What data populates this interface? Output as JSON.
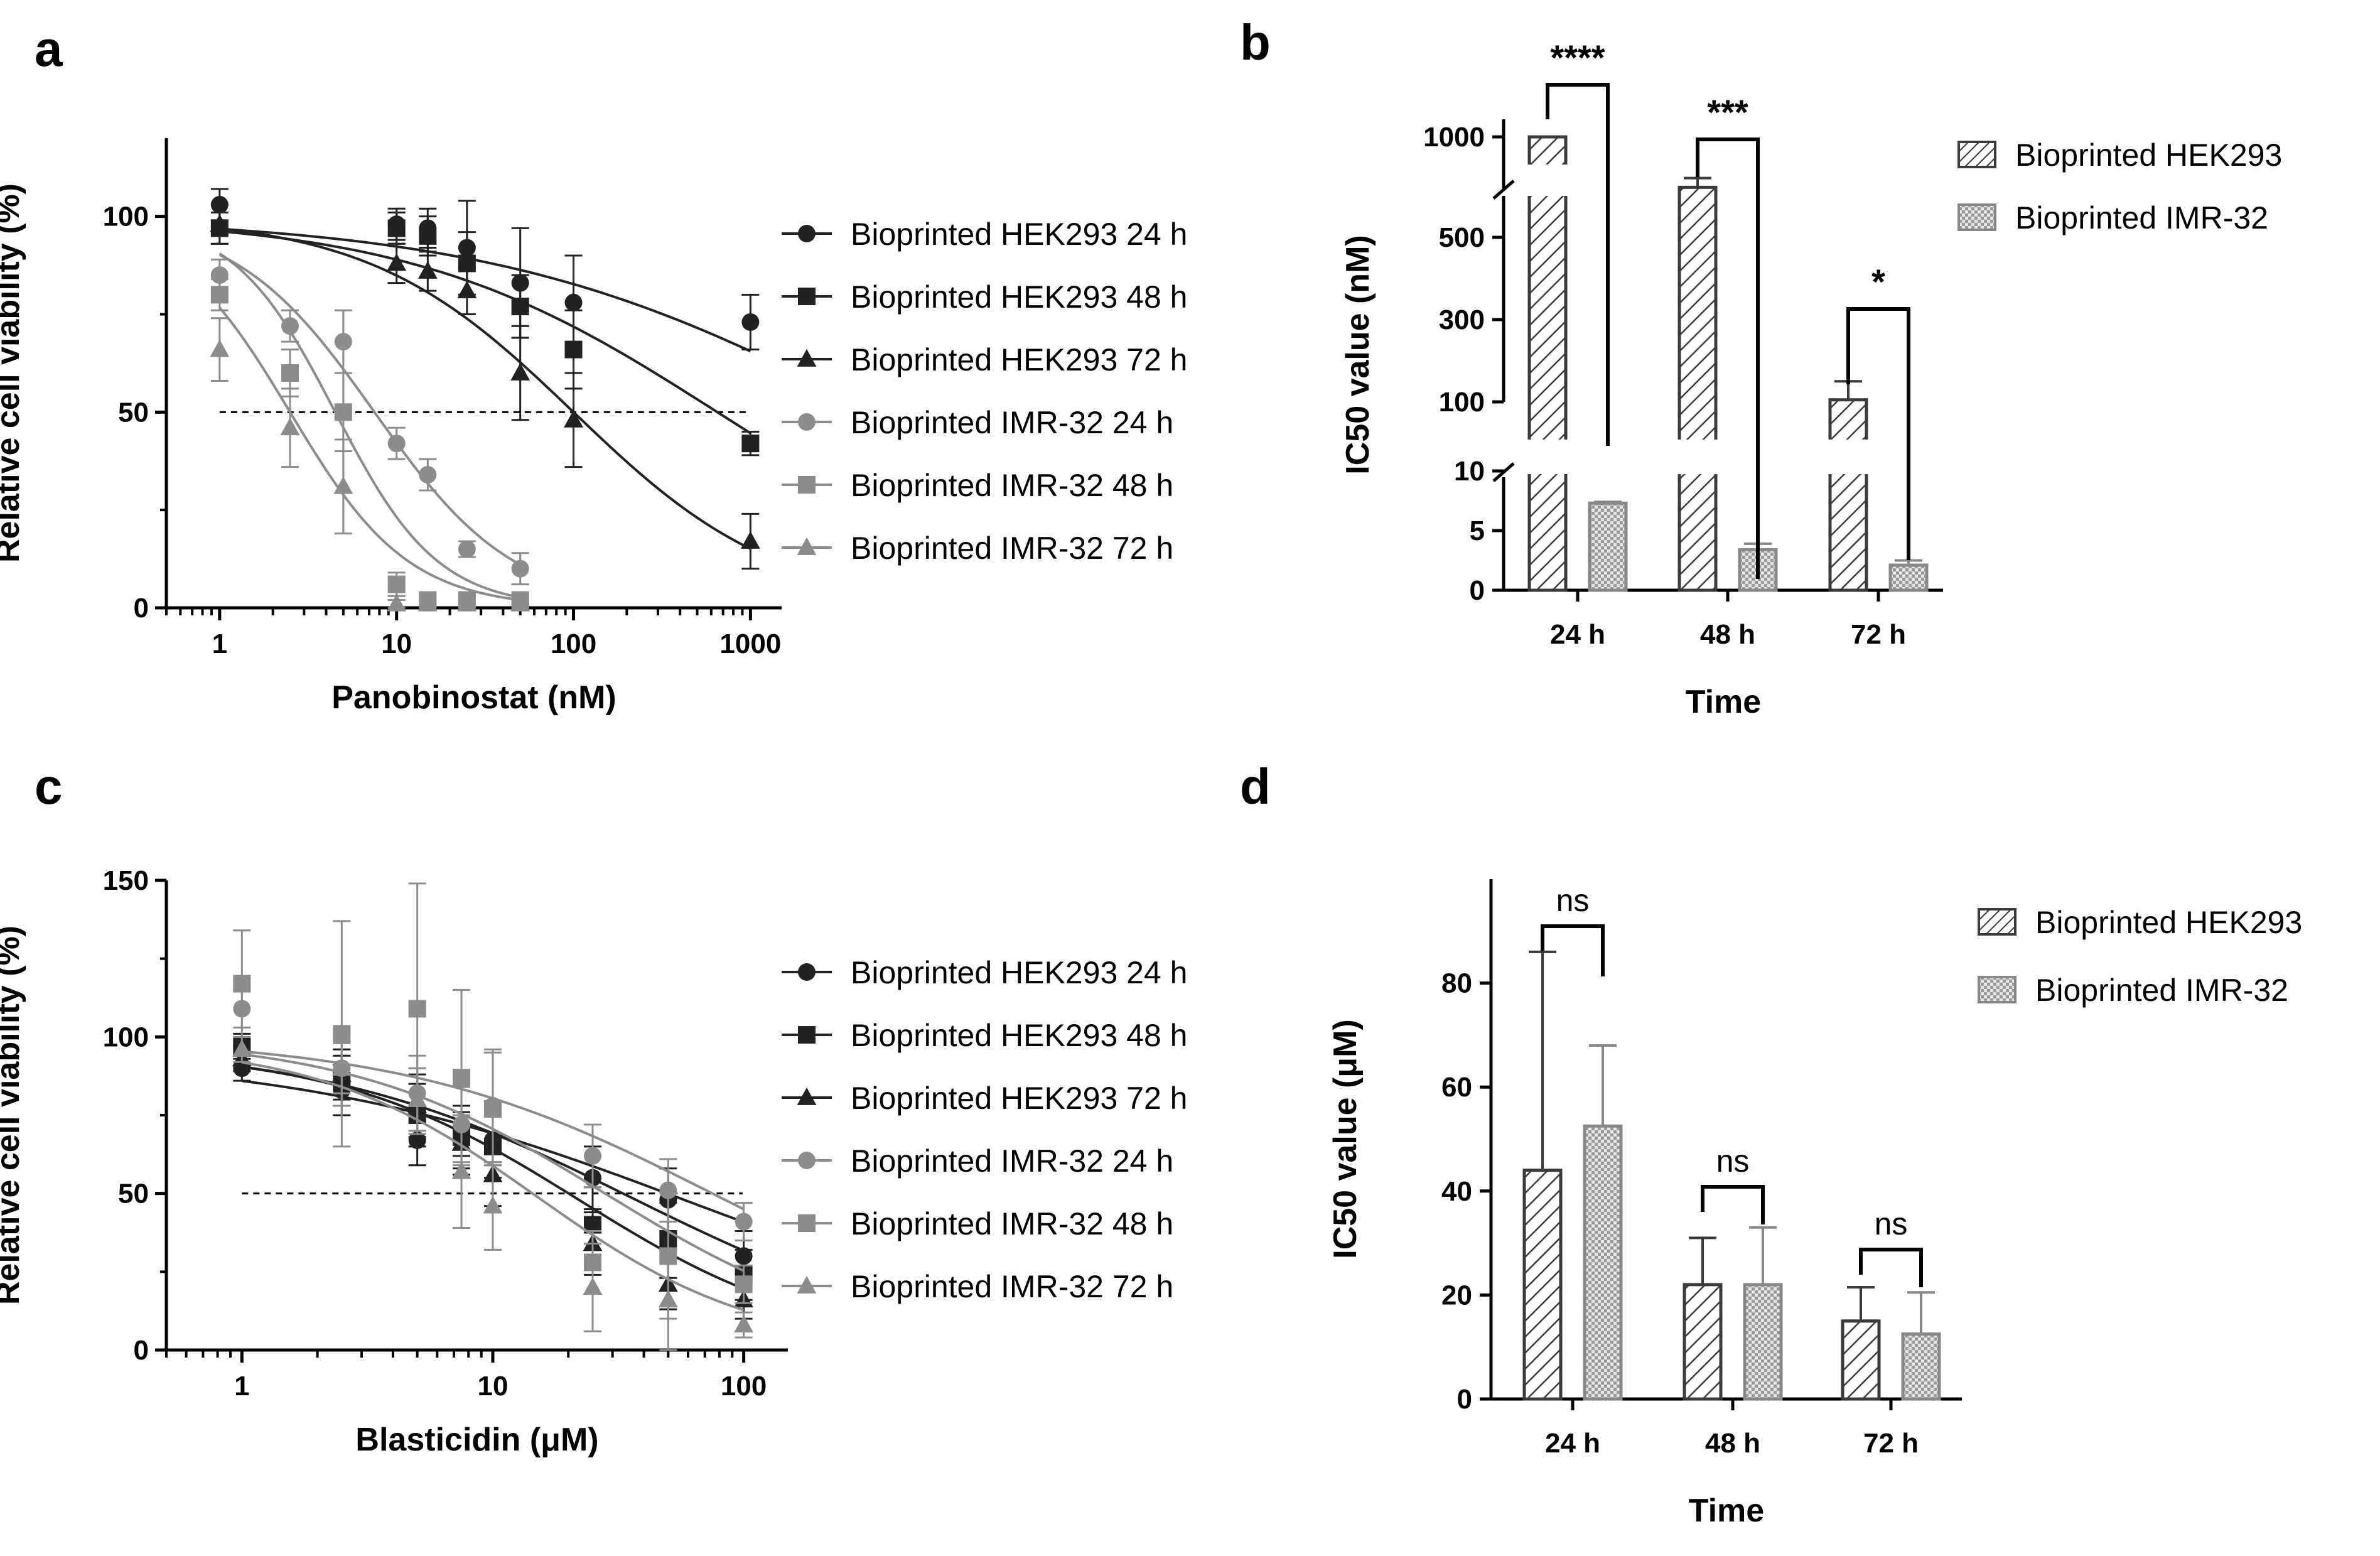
{
  "panels": {
    "a": "a",
    "b": "b",
    "c": "c",
    "d": "d"
  },
  "colors": {
    "hek": "#222222",
    "imr": "#8c8c8c",
    "hek_bar": "#3a3a3a",
    "imr_bar": "#888888"
  },
  "chart_data": [
    {
      "id": "a",
      "type": "scatter",
      "xscale": "log",
      "xlabel": "Panobinostat (nM)",
      "ylabel": "Relative cell viability (%)",
      "xlim": [
        0.5,
        1500
      ],
      "ylim": [
        0,
        120
      ],
      "xticks": [
        "1",
        "10",
        "100",
        "1000"
      ],
      "yticks": [
        "0",
        "50",
        "100"
      ],
      "reference_line": 50,
      "legend_position": "right",
      "series": [
        {
          "name": "Bioprinted HEK293 24 h",
          "color": "#222222",
          "marker": "circle",
          "x": [
            1,
            10,
            15,
            25,
            50,
            100,
            1000
          ],
          "y": [
            103,
            98,
            97,
            92,
            83,
            78,
            73
          ],
          "err": [
            4,
            4,
            5,
            12,
            14,
            12,
            7
          ],
          "fit": {
            "top": 100,
            "bottom": 0,
            "ic50": 5000,
            "hill": 0.4
          }
        },
        {
          "name": "Bioprinted HEK293 48 h",
          "color": "#222222",
          "marker": "square",
          "x": [
            1,
            10,
            15,
            25,
            50,
            100,
            1000
          ],
          "y": [
            97,
            97,
            95,
            88,
            77,
            66,
            42
          ],
          "err": [
            4,
            4,
            5,
            8,
            8,
            10,
            3
          ],
          "fit": {
            "top": 100,
            "bottom": 0,
            "ic50": 650,
            "hill": 0.5
          }
        },
        {
          "name": "Bioprinted HEK293 72 h",
          "color": "#222222",
          "marker": "triangle",
          "x": [
            1,
            10,
            15,
            25,
            50,
            100,
            1000
          ],
          "y": [
            98,
            88,
            86,
            81,
            60,
            48,
            17
          ],
          "err": [
            5,
            5,
            5,
            6,
            12,
            12,
            7
          ],
          "fit": {
            "top": 100,
            "bottom": 0,
            "ic50": 100,
            "hill": 0.75
          }
        },
        {
          "name": "Bioprinted IMR-32 24 h",
          "color": "#8c8c8c",
          "marker": "circle",
          "x": [
            1,
            2.5,
            5,
            10,
            15,
            25,
            50
          ],
          "y": [
            85,
            72,
            68,
            42,
            34,
            15,
            10
          ],
          "err": [
            4,
            4,
            8,
            4,
            4,
            2,
            4
          ],
          "fit": {
            "top": 100,
            "bottom": 0,
            "ic50": 7.5,
            "hill": 1.1
          }
        },
        {
          "name": "Bioprinted IMR-32 48 h",
          "color": "#8c8c8c",
          "marker": "square",
          "x": [
            1,
            2.5,
            5,
            10,
            15,
            25,
            50
          ],
          "y": [
            80,
            60,
            50,
            6,
            2,
            2,
            2
          ],
          "err": [
            4,
            6,
            10,
            3,
            1,
            1,
            1
          ],
          "fit": {
            "top": 100,
            "bottom": 0,
            "ic50": 4.5,
            "hill": 1.5
          }
        },
        {
          "name": "Bioprinted IMR-32 72 h",
          "color": "#8c8c8c",
          "marker": "triangle",
          "x": [
            1,
            2.5,
            5,
            10,
            15,
            25,
            50
          ],
          "y": [
            66,
            46,
            31,
            1,
            1,
            1,
            1
          ],
          "err": [
            8,
            10,
            12,
            1,
            1,
            1,
            1
          ],
          "fit": {
            "top": 100,
            "bottom": 0,
            "ic50": 2.5,
            "hill": 1.3
          }
        }
      ]
    },
    {
      "id": "b",
      "type": "bar",
      "xlabel": "Time",
      "ylabel": "IC50 value (nM)",
      "categories": [
        "24 h",
        "48 h",
        "72 h"
      ],
      "yticks": [
        "0",
        "5",
        "10",
        "100",
        "300",
        "500",
        "1000"
      ],
      "broken_axis": true,
      "legend_position": "top-right",
      "series": [
        {
          "name": "Bioprinted HEK293",
          "color": "#3a3a3a",
          "pattern": "hatch",
          "values": [
            1000,
            510,
            105
          ],
          "err": [
            0,
            90,
            45
          ]
        },
        {
          "name": "Bioprinted IMR-32",
          "color": "#888888",
          "pattern": "checker",
          "values": [
            7.3,
            3.4,
            2.1
          ],
          "err": [
            0.1,
            0.5,
            0.4
          ]
        }
      ],
      "significance": [
        "****",
        "***",
        "*"
      ]
    },
    {
      "id": "c",
      "type": "scatter",
      "xscale": "log",
      "xlabel": "Blasticidin (μM)",
      "ylabel": "Relative cell viability (%)",
      "xlim": [
        0.5,
        150
      ],
      "ylim": [
        0,
        150
      ],
      "xticks": [
        "1",
        "10",
        "100"
      ],
      "yticks": [
        "0",
        "50",
        "100",
        "150"
      ],
      "reference_line": 50,
      "legend_position": "right",
      "series": [
        {
          "name": "Bioprinted HEK293 24 h",
          "color": "#222222",
          "marker": "circle",
          "x": [
            1,
            2.5,
            5,
            7.5,
            10,
            25,
            50,
            100
          ],
          "y": [
            90,
            83,
            67,
            70,
            67,
            55,
            48,
            30
          ],
          "err": [
            4,
            8,
            8,
            8,
            8,
            10,
            10,
            8
          ],
          "fit": {
            "top": 95,
            "bottom": 0,
            "ic50": 60,
            "hill": 0.55
          }
        },
        {
          "name": "Bioprinted HEK293 48 h",
          "color": "#222222",
          "marker": "square",
          "x": [
            1,
            2.5,
            5,
            7.5,
            10,
            25,
            50,
            100
          ],
          "y": [
            97,
            86,
            75,
            68,
            65,
            40,
            35,
            24
          ],
          "err": [
            4,
            8,
            10,
            10,
            10,
            12,
            12,
            8
          ],
          "fit": {
            "top": 98,
            "bottom": 0,
            "ic50": 35,
            "hill": 0.7
          }
        },
        {
          "name": "Bioprinted HEK293 72 h",
          "color": "#222222",
          "marker": "triangle",
          "x": [
            1,
            2.5,
            5,
            7.5,
            10,
            25,
            50,
            100
          ],
          "y": [
            93,
            88,
            78,
            66,
            56,
            34,
            21,
            16
          ],
          "err": [
            4,
            8,
            10,
            10,
            10,
            10,
            8,
            6
          ],
          "fit": {
            "top": 96,
            "bottom": 0,
            "ic50": 22,
            "hill": 0.9
          }
        },
        {
          "name": "Bioprinted IMR-32 24 h",
          "color": "#8c8c8c",
          "marker": "circle",
          "x": [
            1,
            2.5,
            5,
            7.5,
            10,
            25,
            50,
            100
          ],
          "y": [
            109,
            90,
            82,
            72,
            78,
            62,
            51,
            41
          ],
          "err": [
            6,
            12,
            12,
            12,
            18,
            10,
            10,
            6
          ],
          "fit": {
            "top": 100,
            "bottom": 0,
            "ic50": 75,
            "hill": 0.7
          }
        },
        {
          "name": "Bioprinted IMR-32 48 h",
          "color": "#8c8c8c",
          "marker": "square",
          "x": [
            1,
            2.5,
            5,
            7.5,
            10,
            25,
            50,
            100
          ],
          "y": [
            117,
            101,
            109,
            87,
            77,
            28,
            30,
            21
          ],
          "err": [
            17,
            36,
            40,
            28,
            18,
            10,
            20,
            6
          ],
          "fit": {
            "top": 100,
            "bottom": 0,
            "ic50": 28,
            "hill": 0.85
          }
        },
        {
          "name": "Bioprinted IMR-32 72 h",
          "color": "#8c8c8c",
          "marker": "triangle",
          "x": [
            1,
            2.5,
            5,
            7.5,
            10,
            25,
            50,
            100
          ],
          "y": [
            96,
            90,
            80,
            57,
            46,
            20,
            16,
            8
          ],
          "err": [
            4,
            8,
            10,
            18,
            14,
            14,
            16,
            4
          ],
          "fit": {
            "top": 98,
            "bottom": 0,
            "ic50": 15,
            "hill": 1.0
          }
        }
      ]
    },
    {
      "id": "d",
      "type": "bar",
      "xlabel": "Time",
      "ylabel": "IC50 value (μM)",
      "categories": [
        "24 h",
        "48 h",
        "72 h"
      ],
      "ylim": [
        0,
        100
      ],
      "yticks": [
        "0",
        "20",
        "40",
        "60",
        "80"
      ],
      "legend_position": "top-right",
      "series": [
        {
          "name": "Bioprinted HEK293",
          "color": "#3a3a3a",
          "pattern": "hatch",
          "values": [
            44,
            22,
            15
          ],
          "err": [
            42,
            9,
            6.5
          ]
        },
        {
          "name": "Bioprinted IMR-32",
          "color": "#888888",
          "pattern": "checker",
          "values": [
            52.5,
            22,
            12.5
          ],
          "err": [
            15.5,
            11,
            8
          ]
        }
      ],
      "significance": [
        "ns",
        "ns",
        "ns"
      ]
    }
  ]
}
